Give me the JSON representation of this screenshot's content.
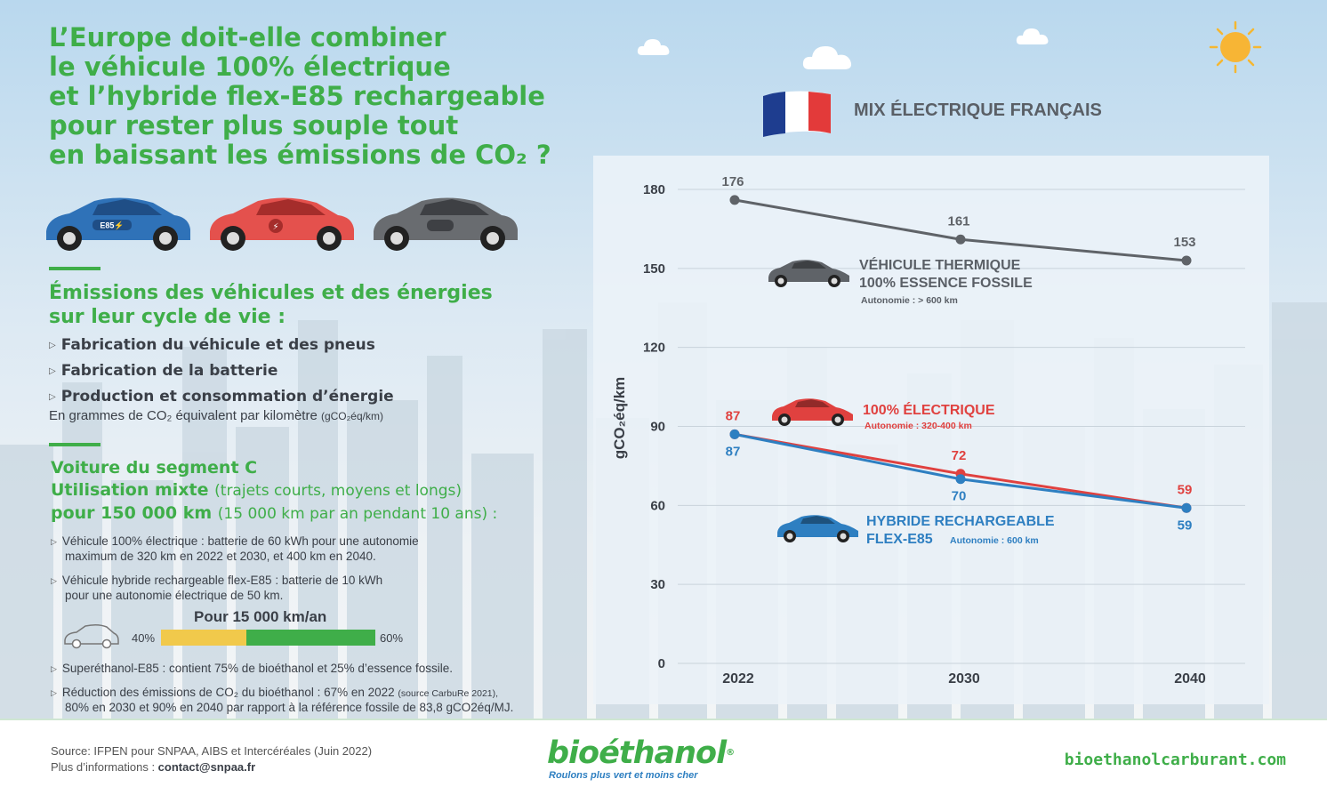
{
  "title_lines": [
    "L’Europe doit-elle combiner",
    "le véhicule 100% électrique",
    "et l’hybride flex-E85 rechargeable",
    "pour rester plus souple tout",
    "en baissant les émissions de CO₂ ?"
  ],
  "emissions": {
    "title_line1": "Émissions des véhicules et des énergies",
    "title_line2": "sur leur cycle de vie :",
    "bullets": [
      "Fabrication du véhicule et des pneus",
      "Fabrication de la batterie",
      "Production et consommation d’énergie"
    ],
    "unit_note": "En grammes de CO₂ équivalent par kilomètre",
    "unit_note_small": "(gCO₂éq/km)"
  },
  "segment": {
    "line1": "Voiture du segment C",
    "line2_bold": "Utilisation mixte",
    "line2_light": "(trajets courts, moyens et longs)",
    "line3_bold": "pour 150 000 km",
    "line3_light": "(15 000 km par an pendant 10 ans) :"
  },
  "notes": {
    "ev_1": "Véhicule 100% électrique : batterie de 60 kWh pour une autonomie",
    "ev_2": "maximum de 320 km en 2022 et 2030, et 400 km en 2040.",
    "phev_1": "Véhicule hybride rechargeable flex-E85 : batterie de 10 kWh",
    "phev_2": "pour une autonomie électrique de 50 km.",
    "e85": "Superéthanol-E85 : contient 75% de bioéthanol et 25% d’essence fossile.",
    "bio_1": "Réduction des émissions de CO₂ du bioéthanol : 67% en 2022",
    "bio_1_small": "(source CarbuRe 2021),",
    "bio_2": "80% en 2030 et 90% en 2040 par rapport à la référence fossile de 83,8 gCO2éq/MJ."
  },
  "usage_bar": {
    "title": "Pour 15 000 km/an",
    "electric_share": 0.4,
    "e85_share": 0.6,
    "electric_label": "40%",
    "e85_label": "60%",
    "colors": {
      "electric": "#f1c94b",
      "e85": "#3fae49"
    }
  },
  "footer": {
    "source": "Source: IFPEN pour SNPAA, AIBS et Intercéréales (Juin 2022)",
    "contact_prefix": "Plus d’informations : ",
    "contact_email": "contact@snpaa.fr",
    "logo": "bioéthanol",
    "logo_reg": "®",
    "slogan": "Roulons plus vert et moins cher",
    "website": "bioethanolcarburant.com"
  },
  "chart_data": {
    "type": "line",
    "title": "MIX ÉLECTRIQUE FRANÇAIS",
    "ylabel": "gCO₂éq/km",
    "x": [
      "2022",
      "2030",
      "2040"
    ],
    "ylim": [
      0,
      180
    ],
    "yticks": [
      0,
      30,
      60,
      90,
      120,
      150,
      180
    ],
    "grid": true,
    "series": [
      {
        "name": "VÉHICULE THERMIQUE 100% ESSENCE FOSSILE",
        "label_line1": "VÉHICULE THERMIQUE",
        "label_line2": "100% ESSENCE FOSSILE",
        "autonomy": "Autonomie : > 600 km",
        "values": [
          176,
          161,
          153
        ],
        "color": "#5f6368",
        "label_pos": "above"
      },
      {
        "name": "100% ÉLECTRIQUE",
        "label_line1": "100% ÉLECTRIQUE",
        "label_line2": "",
        "autonomy": "Autonomie : 320-400 km",
        "values": [
          87,
          72,
          59
        ],
        "color": "#e0413f",
        "label_pos": "above"
      },
      {
        "name": "HYBRIDE RECHARGEABLE FLEX-E85",
        "label_line1": "HYBRIDE RECHARGEABLE",
        "label_line2": "FLEX-E85",
        "autonomy": "Autonomie : 600 km",
        "values": [
          87,
          70,
          59
        ],
        "color": "#2e7fc1",
        "label_pos": "below"
      }
    ]
  },
  "icons": {
    "car_e85": "e85-car-icon",
    "car_electric": "electric-car-icon",
    "car_thermal": "thermal-car-icon",
    "flag": "france-flag-icon",
    "sun": "sun-icon",
    "cloud": "cloud-icon"
  }
}
